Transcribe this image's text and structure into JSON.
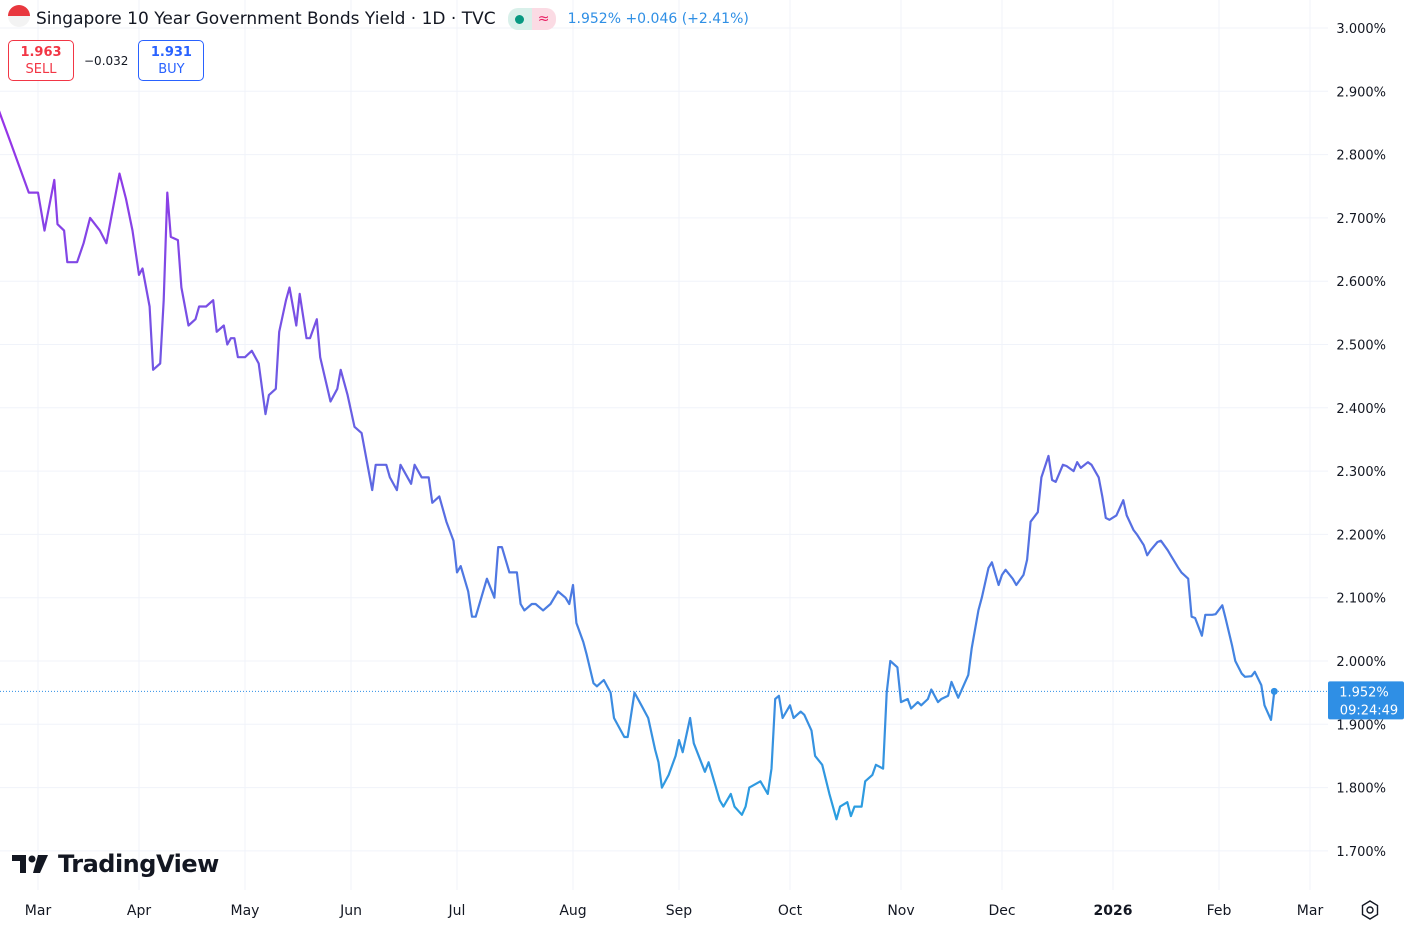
{
  "header": {
    "title": "Singapore 10 Year Government Bonds Yield · 1D · TVC",
    "flag_icon": "singapore-flag-icon",
    "market_status_icon": "market-open-dot-icon",
    "data_status_icon": "delayed-data-icon",
    "data_status_glyph": "≈",
    "last_price": "1.952%",
    "change": "+0.046",
    "change_pct": "(+2.41%)"
  },
  "trade": {
    "sell_price": "1.963",
    "sell_label": "SELL",
    "spread": "−0.032",
    "buy_price": "1.931",
    "buy_label": "BUY"
  },
  "price_label": {
    "value": "1.952%",
    "countdown": "09:24:49"
  },
  "logo": {
    "text": "TradingView"
  },
  "settings_icon": "gear-icon",
  "colors": {
    "line_top": "#9c2fe8",
    "line_mid": "#5c6ae2",
    "line_bottom": "#2a9fe0",
    "price_label_bg": "#2f8fe5",
    "sell": "#f23645",
    "buy": "#2962ff"
  },
  "chart_data": {
    "type": "line",
    "title": "Singapore 10 Year Government Bonds Yield · 1D · TVC",
    "xlabel": "",
    "ylabel": "",
    "ylim": [
      1.65,
      3.05
    ],
    "yticks": [
      "3.000%",
      "2.900%",
      "2.800%",
      "2.700%",
      "2.600%",
      "2.500%",
      "2.400%",
      "2.300%",
      "2.200%",
      "2.100%",
      "2.000%",
      "1.900%",
      "1.800%",
      "1.700%"
    ],
    "xticks": [
      "Mar",
      "Apr",
      "May",
      "Jun",
      "Jul",
      "Aug",
      "Sep",
      "Oct",
      "Nov",
      "Dec",
      "2026",
      "Feb",
      "Mar"
    ],
    "grid": true,
    "series": [
      {
        "points": [
          [
            "2025-02-17",
            2.9
          ],
          [
            "2025-02-20",
            2.88
          ],
          [
            "2025-02-23",
            2.82
          ],
          [
            "2025-02-25",
            2.78
          ],
          [
            "2025-02-27",
            2.74
          ],
          [
            "2025-03-01",
            2.74
          ],
          [
            "2025-03-03",
            2.68
          ],
          [
            "2025-03-06",
            2.76
          ],
          [
            "2025-03-07",
            2.69
          ],
          [
            "2025-03-09",
            2.68
          ],
          [
            "2025-03-10",
            2.63
          ],
          [
            "2025-03-13",
            2.63
          ],
          [
            "2025-03-15",
            2.66
          ],
          [
            "2025-03-17",
            2.7
          ],
          [
            "2025-03-20",
            2.68
          ],
          [
            "2025-03-22",
            2.66
          ],
          [
            "2025-03-26",
            2.77
          ],
          [
            "2025-03-28",
            2.73
          ],
          [
            "2025-03-30",
            2.68
          ],
          [
            "2025-04-01",
            2.61
          ],
          [
            "2025-04-02",
            2.62
          ],
          [
            "2025-04-04",
            2.56
          ],
          [
            "2025-04-05",
            2.46
          ],
          [
            "2025-04-07",
            2.47
          ],
          [
            "2025-04-08",
            2.57
          ],
          [
            "2025-04-09",
            2.74
          ],
          [
            "2025-04-10",
            2.67
          ],
          [
            "2025-04-12",
            2.665
          ],
          [
            "2025-04-13",
            2.59
          ],
          [
            "2025-04-15",
            2.53
          ],
          [
            "2025-04-17",
            2.54
          ],
          [
            "2025-04-18",
            2.56
          ],
          [
            "2025-04-20",
            2.56
          ],
          [
            "2025-04-22",
            2.57
          ],
          [
            "2025-04-23",
            2.52
          ],
          [
            "2025-04-25",
            2.53
          ],
          [
            "2025-04-26",
            2.5
          ],
          [
            "2025-04-27",
            2.51
          ],
          [
            "2025-04-28",
            2.51
          ],
          [
            "2025-04-29",
            2.48
          ],
          [
            "2025-05-01",
            2.48
          ],
          [
            "2025-05-03",
            2.49
          ],
          [
            "2025-05-05",
            2.47
          ],
          [
            "2025-05-07",
            2.39
          ],
          [
            "2025-05-08",
            2.42
          ],
          [
            "2025-05-10",
            2.43
          ],
          [
            "2025-05-11",
            2.52
          ],
          [
            "2025-05-13",
            2.57
          ],
          [
            "2025-05-14",
            2.59
          ],
          [
            "2025-05-16",
            2.53
          ],
          [
            "2025-05-17",
            2.58
          ],
          [
            "2025-05-19",
            2.51
          ],
          [
            "2025-05-20",
            2.51
          ],
          [
            "2025-05-22",
            2.54
          ],
          [
            "2025-05-23",
            2.48
          ],
          [
            "2025-05-26",
            2.41
          ],
          [
            "2025-05-28",
            2.43
          ],
          [
            "2025-05-29",
            2.46
          ],
          [
            "2025-05-31",
            2.42
          ],
          [
            "2025-06-02",
            2.37
          ],
          [
            "2025-06-04",
            2.36
          ],
          [
            "2025-06-07",
            2.27
          ],
          [
            "2025-06-08",
            2.31
          ],
          [
            "2025-06-11",
            2.31
          ],
          [
            "2025-06-12",
            2.29
          ],
          [
            "2025-06-14",
            2.27
          ],
          [
            "2025-06-15",
            2.31
          ],
          [
            "2025-06-18",
            2.28
          ],
          [
            "2025-06-19",
            2.31
          ],
          [
            "2025-06-21",
            2.29
          ],
          [
            "2025-06-23",
            2.29
          ],
          [
            "2025-06-24",
            2.25
          ],
          [
            "2025-06-26",
            2.26
          ],
          [
            "2025-06-28",
            2.22
          ],
          [
            "2025-06-30",
            2.19
          ],
          [
            "2025-07-01",
            2.14
          ],
          [
            "2025-07-02",
            2.15
          ],
          [
            "2025-07-04",
            2.11
          ],
          [
            "2025-07-05",
            2.07
          ],
          [
            "2025-07-06",
            2.07
          ],
          [
            "2025-07-09",
            2.13
          ],
          [
            "2025-07-11",
            2.1
          ],
          [
            "2025-07-12",
            2.18
          ],
          [
            "2025-07-13",
            2.18
          ],
          [
            "2025-07-15",
            2.14
          ],
          [
            "2025-07-17",
            2.14
          ],
          [
            "2025-07-18",
            2.09
          ],
          [
            "2025-07-19",
            2.08
          ],
          [
            "2025-07-21",
            2.09
          ],
          [
            "2025-07-22",
            2.09
          ],
          [
            "2025-07-24",
            2.08
          ],
          [
            "2025-07-26",
            2.09
          ],
          [
            "2025-07-28",
            2.11
          ],
          [
            "2025-07-30",
            2.1
          ],
          [
            "2025-07-31",
            2.09
          ],
          [
            "2025-08-01",
            2.12
          ],
          [
            "2025-08-02",
            2.06
          ],
          [
            "2025-08-04",
            2.03
          ],
          [
            "2025-08-05",
            2.01
          ],
          [
            "2025-08-07",
            1.965
          ],
          [
            "2025-08-08",
            1.96
          ],
          [
            "2025-08-10",
            1.97
          ],
          [
            "2025-08-12",
            1.95
          ],
          [
            "2025-08-13",
            1.91
          ],
          [
            "2025-08-16",
            1.88
          ],
          [
            "2025-08-17",
            1.88
          ],
          [
            "2025-08-19",
            1.95
          ],
          [
            "2025-08-21",
            1.93
          ],
          [
            "2025-08-23",
            1.91
          ],
          [
            "2025-08-25",
            1.86
          ],
          [
            "2025-08-26",
            1.84
          ],
          [
            "2025-08-27",
            1.8
          ],
          [
            "2025-08-29",
            1.82
          ],
          [
            "2025-08-31",
            1.85
          ],
          [
            "2025-09-01",
            1.875
          ],
          [
            "2025-09-02",
            1.856
          ],
          [
            "2025-09-04",
            1.91
          ],
          [
            "2025-09-05",
            1.87
          ],
          [
            "2025-09-07",
            1.84
          ],
          [
            "2025-09-08",
            1.825
          ],
          [
            "2025-09-09",
            1.84
          ],
          [
            "2025-09-11",
            1.8
          ],
          [
            "2025-09-12",
            1.78
          ],
          [
            "2025-09-13",
            1.77
          ],
          [
            "2025-09-15",
            1.79
          ],
          [
            "2025-09-16",
            1.77
          ],
          [
            "2025-09-18",
            1.757
          ],
          [
            "2025-09-19",
            1.77
          ],
          [
            "2025-09-20",
            1.8
          ],
          [
            "2025-09-23",
            1.81
          ],
          [
            "2025-09-25",
            1.79
          ],
          [
            "2025-09-26",
            1.83
          ],
          [
            "2025-09-27",
            1.94
          ],
          [
            "2025-09-28",
            1.945
          ],
          [
            "2025-09-29",
            1.91
          ],
          [
            "2025-10-01",
            1.93
          ],
          [
            "2025-10-02",
            1.91
          ],
          [
            "2025-10-04",
            1.92
          ],
          [
            "2025-10-05",
            1.915
          ],
          [
            "2025-10-07",
            1.89
          ],
          [
            "2025-10-08",
            1.85
          ],
          [
            "2025-10-10",
            1.836
          ],
          [
            "2025-10-12",
            1.79
          ],
          [
            "2025-10-14",
            1.75
          ],
          [
            "2025-10-15",
            1.77
          ],
          [
            "2025-10-17",
            1.777
          ],
          [
            "2025-10-18",
            1.755
          ],
          [
            "2025-10-19",
            1.77
          ],
          [
            "2025-10-21",
            1.77
          ],
          [
            "2025-10-22",
            1.81
          ],
          [
            "2025-10-24",
            1.82
          ],
          [
            "2025-10-25",
            1.836
          ],
          [
            "2025-10-27",
            1.83
          ],
          [
            "2025-10-28",
            1.95
          ],
          [
            "2025-10-29",
            2.0
          ],
          [
            "2025-10-31",
            1.99
          ],
          [
            "2025-11-01",
            1.935
          ],
          [
            "2025-11-03",
            1.94
          ],
          [
            "2025-11-04",
            1.925
          ],
          [
            "2025-11-06",
            1.935
          ],
          [
            "2025-11-07",
            1.93
          ],
          [
            "2025-11-09",
            1.94
          ],
          [
            "2025-11-10",
            1.955
          ],
          [
            "2025-11-12",
            1.935
          ],
          [
            "2025-11-13",
            1.94
          ],
          [
            "2025-11-15",
            1.945
          ],
          [
            "2025-11-16",
            1.967
          ],
          [
            "2025-11-18",
            1.942
          ],
          [
            "2025-11-19",
            1.954
          ],
          [
            "2025-11-21",
            1.978
          ],
          [
            "2025-11-22",
            2.02
          ],
          [
            "2025-11-24",
            2.08
          ],
          [
            "2025-11-25",
            2.1
          ],
          [
            "2025-11-27",
            2.147
          ],
          [
            "2025-11-28",
            2.156
          ],
          [
            "2025-11-30",
            2.12
          ],
          [
            "2025-12-01",
            2.136
          ],
          [
            "2025-12-02",
            2.144
          ],
          [
            "2025-12-04",
            2.13
          ],
          [
            "2025-12-05",
            2.12
          ],
          [
            "2025-12-07",
            2.136
          ],
          [
            "2025-12-08",
            2.16
          ],
          [
            "2025-12-09",
            2.22
          ],
          [
            "2025-12-11",
            2.235
          ],
          [
            "2025-12-12",
            2.29
          ],
          [
            "2025-12-14",
            2.324
          ],
          [
            "2025-12-15",
            2.286
          ],
          [
            "2025-12-16",
            2.283
          ],
          [
            "2025-12-18",
            2.31
          ],
          [
            "2025-12-19",
            2.308
          ],
          [
            "2025-12-21",
            2.3
          ],
          [
            "2025-12-22",
            2.314
          ],
          [
            "2025-12-23",
            2.305
          ],
          [
            "2025-12-25",
            2.314
          ],
          [
            "2025-12-26",
            2.31
          ],
          [
            "2025-12-28",
            2.29
          ],
          [
            "2025-12-29",
            2.26
          ],
          [
            "2025-12-30",
            2.226
          ],
          [
            "2025-12-31",
            2.223
          ],
          [
            "2026-01-02",
            2.23
          ],
          [
            "2026-01-04",
            2.254
          ],
          [
            "2026-01-05",
            2.23
          ],
          [
            "2026-01-07",
            2.207
          ],
          [
            "2026-01-08",
            2.2
          ],
          [
            "2026-01-10",
            2.183
          ],
          [
            "2026-01-11",
            2.167
          ],
          [
            "2026-01-12",
            2.175
          ],
          [
            "2026-01-14",
            2.188
          ],
          [
            "2026-01-15",
            2.19
          ],
          [
            "2026-01-17",
            2.175
          ],
          [
            "2026-01-18",
            2.166
          ],
          [
            "2026-01-20",
            2.148
          ],
          [
            "2026-01-21",
            2.14
          ],
          [
            "2026-01-23",
            2.13
          ],
          [
            "2026-01-24",
            2.07
          ],
          [
            "2026-01-25",
            2.068
          ],
          [
            "2026-01-27",
            2.04
          ],
          [
            "2026-01-28",
            2.073
          ],
          [
            "2026-01-30",
            2.073
          ],
          [
            "2026-01-31",
            2.074
          ],
          [
            "2026-02-02",
            2.088
          ],
          [
            "2026-02-03",
            2.068
          ],
          [
            "2026-02-05",
            2.025
          ],
          [
            "2026-02-06",
            2.0
          ],
          [
            "2026-02-08",
            1.98
          ],
          [
            "2026-02-09",
            1.975
          ],
          [
            "2026-02-11",
            1.976
          ],
          [
            "2026-02-12",
            1.983
          ],
          [
            "2026-02-14",
            1.962
          ],
          [
            "2026-02-15",
            1.93
          ],
          [
            "2026-02-17",
            1.907
          ],
          [
            "2026-02-18",
            1.952
          ]
        ]
      }
    ],
    "last_value": 1.952
  }
}
